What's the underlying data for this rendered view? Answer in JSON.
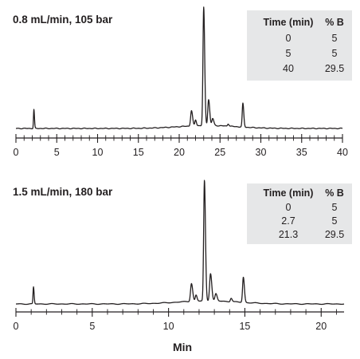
{
  "chart_data": [
    {
      "type": "line",
      "title": "0.8 mL/min, 105 bar",
      "xlabel": "",
      "ylabel": "",
      "xlim": [
        0,
        40
      ],
      "ylim": [
        0,
        100
      ],
      "xticks": [
        0,
        5,
        10,
        15,
        20,
        25,
        30,
        35,
        40
      ],
      "grid": false,
      "gradient_table": {
        "headers": [
          "Time (min)",
          "% B"
        ],
        "rows": [
          [
            "0",
            "5"
          ],
          [
            "5",
            "5"
          ],
          [
            "40",
            "29.5"
          ]
        ]
      },
      "peaks": [
        {
          "x": 2.2,
          "height": 16,
          "width": 0.05
        },
        {
          "x": 21.5,
          "height": 13,
          "width": 0.1
        },
        {
          "x": 22.0,
          "height": 5,
          "width": 0.08
        },
        {
          "x": 23.0,
          "height": 100,
          "width": 0.09
        },
        {
          "x": 23.6,
          "height": 22,
          "width": 0.1
        },
        {
          "x": 24.1,
          "height": 6,
          "width": 0.1
        },
        {
          "x": 26.0,
          "height": 2,
          "width": 0.08
        },
        {
          "x": 27.8,
          "height": 20,
          "width": 0.08
        }
      ],
      "baseline": {
        "hump_center": 23.5,
        "hump_height": 2.5,
        "hump_width": 3.5
      }
    },
    {
      "type": "line",
      "title": "1.5 mL/min, 180 bar",
      "xlabel": "Min",
      "ylabel": "",
      "xlim": [
        0,
        21.5
      ],
      "ylim": [
        0,
        100
      ],
      "xticks": [
        0,
        5,
        10,
        15,
        20
      ],
      "grid": false,
      "gradient_table": {
        "headers": [
          "Time (min)",
          "% B"
        ],
        "rows": [
          [
            "0",
            "5"
          ],
          [
            "2.7",
            "5"
          ],
          [
            "21.3",
            "29.5"
          ]
        ]
      },
      "peaks": [
        {
          "x": 1.15,
          "height": 14,
          "width": 0.03
        },
        {
          "x": 11.5,
          "height": 15,
          "width": 0.06
        },
        {
          "x": 11.8,
          "height": 5,
          "width": 0.05
        },
        {
          "x": 12.35,
          "height": 100,
          "width": 0.05
        },
        {
          "x": 12.75,
          "height": 23,
          "width": 0.06
        },
        {
          "x": 13.1,
          "height": 6,
          "width": 0.06
        },
        {
          "x": 14.1,
          "height": 3,
          "width": 0.05
        },
        {
          "x": 14.9,
          "height": 21,
          "width": 0.05
        }
      ],
      "baseline": {
        "hump_center": 12.6,
        "hump_height": 2.5,
        "hump_width": 2.0
      }
    }
  ]
}
